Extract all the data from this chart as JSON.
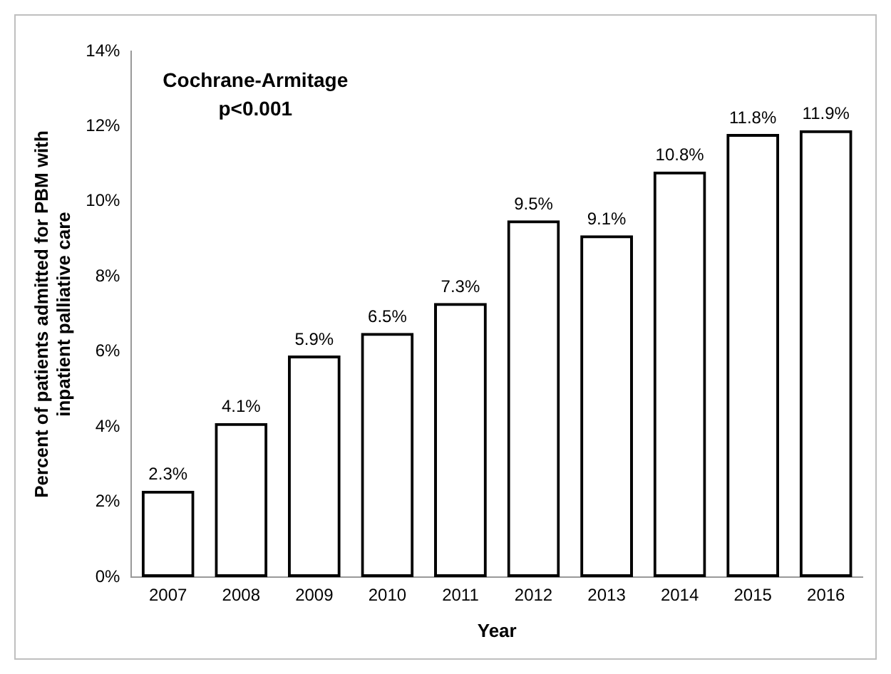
{
  "chart_data": {
    "type": "bar",
    "xlabel": "Year",
    "ylabel": "Percent of patients admitted for PBM with\ninpatient palliative care",
    "categories": [
      "2007",
      "2008",
      "2009",
      "2010",
      "2011",
      "2012",
      "2013",
      "2014",
      "2015",
      "2016"
    ],
    "values": [
      2.3,
      4.1,
      5.9,
      6.5,
      7.3,
      9.5,
      9.1,
      10.8,
      11.8,
      11.9
    ],
    "value_labels": [
      "2.3%",
      "4.1%",
      "5.9%",
      "6.5%",
      "7.3%",
      "9.5%",
      "9.1%",
      "10.8%",
      "11.8%",
      "11.9%"
    ],
    "color": "#000000",
    "ylim": [
      0,
      14
    ],
    "yticks": [
      {
        "value": 0,
        "label": "0%"
      },
      {
        "value": 2,
        "label": "2%"
      },
      {
        "value": 4,
        "label": "4%"
      },
      {
        "value": 6,
        "label": "6%"
      },
      {
        "value": 8,
        "label": "8%"
      },
      {
        "value": 10,
        "label": "10%"
      },
      {
        "value": 12,
        "label": "12%"
      },
      {
        "value": 14,
        "label": "14%"
      }
    ],
    "annotations": [
      "Cochrane-Armitage",
      "p<0.001"
    ],
    "grid": false,
    "legend": false
  }
}
